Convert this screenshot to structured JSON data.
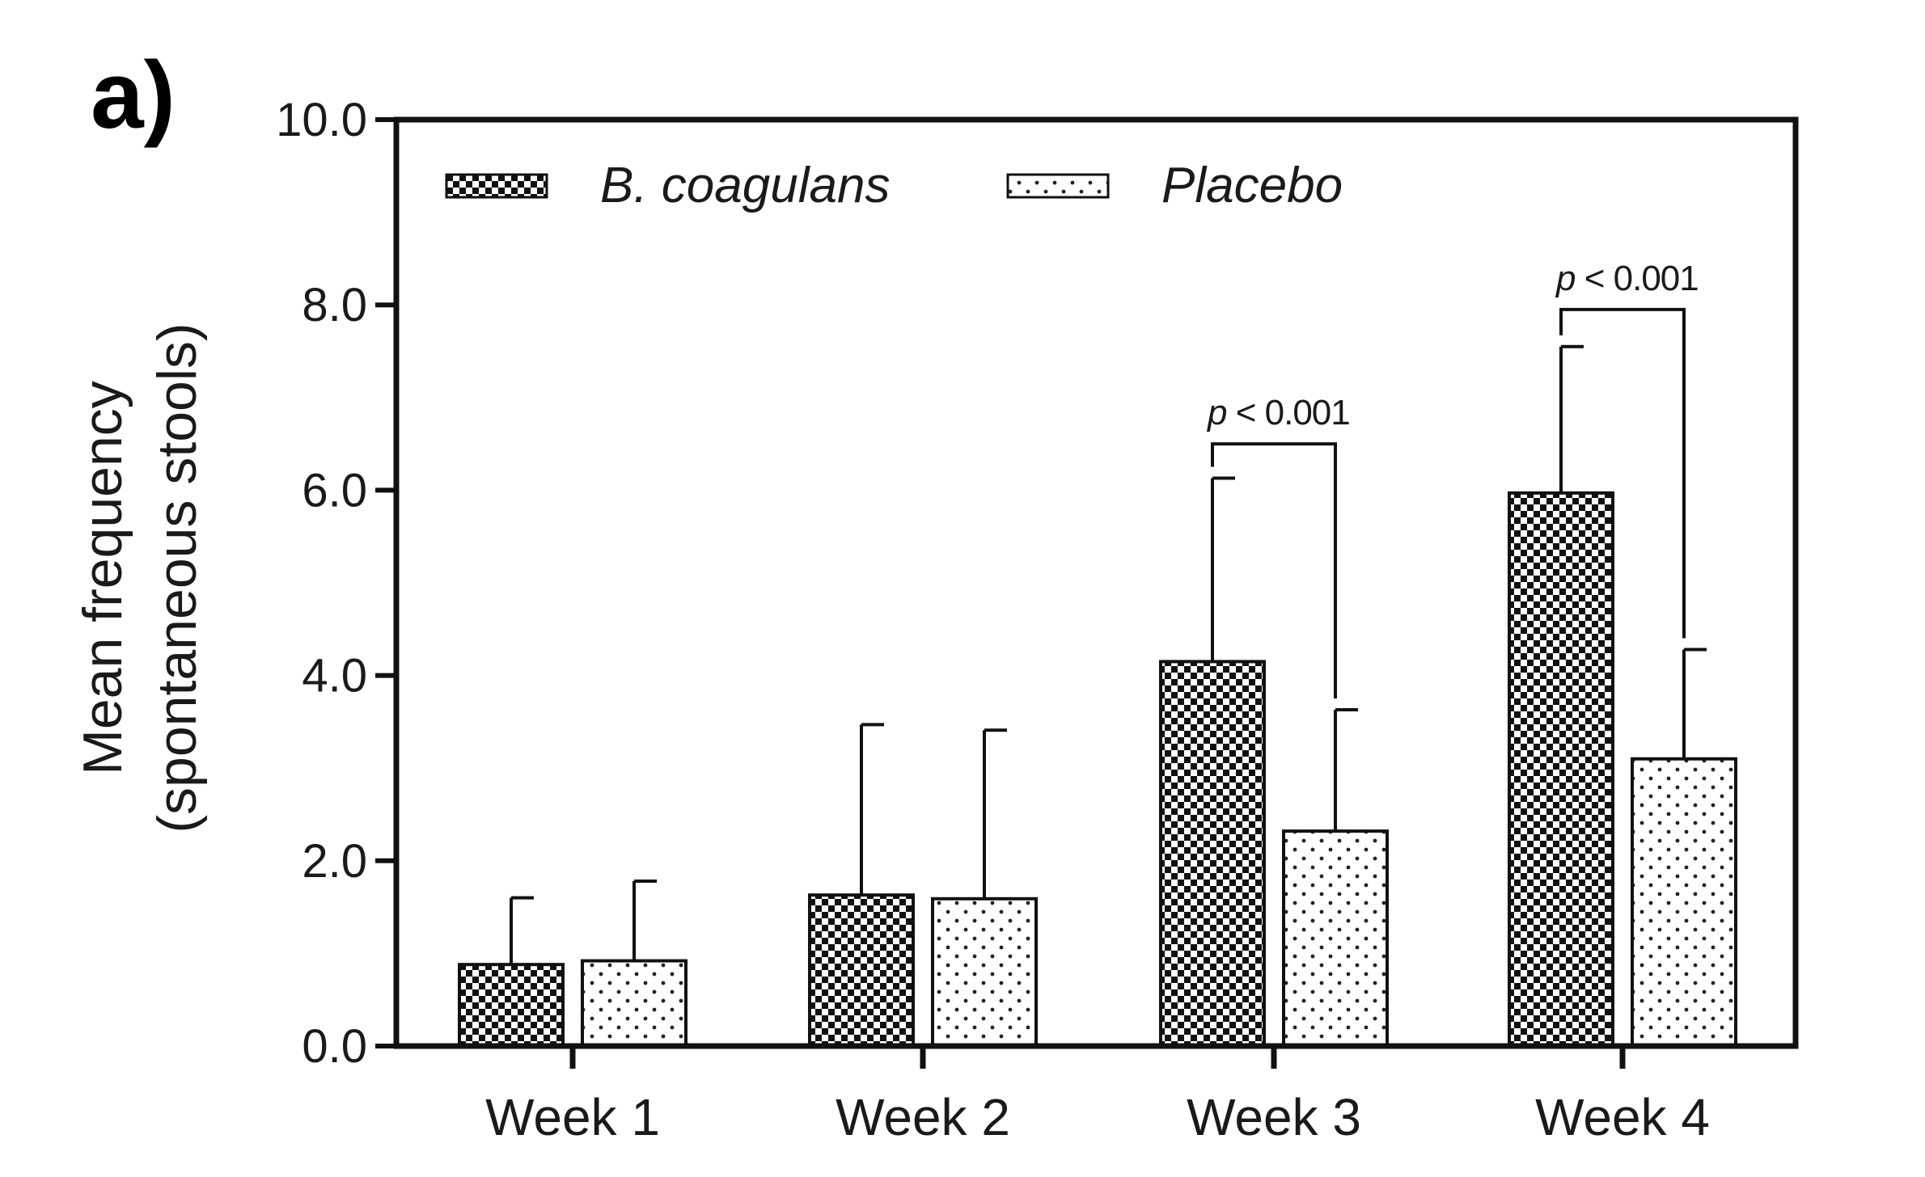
{
  "panel_label": "a)",
  "chart_data": {
    "type": "bar",
    "categories": [
      "Week 1",
      "Week 2",
      "Week 3",
      "Week 4"
    ],
    "series": [
      {
        "name": "B. coagulans",
        "values": [
          0.88,
          1.63,
          4.15,
          5.97
        ],
        "error": [
          0.72,
          1.84,
          1.98,
          1.58
        ],
        "pattern": "checker"
      },
      {
        "name": "Placebo",
        "values": [
          0.92,
          1.59,
          2.32,
          3.1
        ],
        "error": [
          0.86,
          1.82,
          1.31,
          1.18
        ],
        "pattern": "dots"
      }
    ],
    "ylabel_line1": "Mean frequency",
    "ylabel_line2": "(spontaneous stools)",
    "ylim": [
      0,
      10
    ],
    "yticks": [
      "0.0",
      "2.0",
      "4.0",
      "6.0",
      "8.0",
      "10.0"
    ],
    "ytick_values": [
      0,
      2,
      4,
      6,
      8,
      10
    ],
    "legend_position": "top-left",
    "grid": false,
    "annotations": [
      {
        "category_index": 2,
        "p_symbol": "p",
        "p_text": " < 0.001",
        "bracket_y": 6.5
      },
      {
        "category_index": 3,
        "p_symbol": "p",
        "p_text": " < 0.001",
        "bracket_y": 7.95
      }
    ]
  }
}
